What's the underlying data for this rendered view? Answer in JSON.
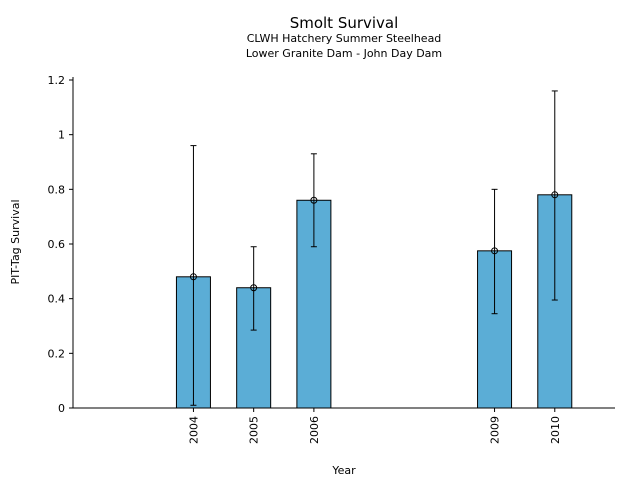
{
  "chart_data": {
    "type": "bar",
    "title": "Smolt Survival",
    "subtitle_lines": [
      "CLWH Hatchery Summer Steelhead",
      "Lower Granite Dam - John Day Dam"
    ],
    "xlabel": "Year",
    "ylabel": "PIT-Tag Survival",
    "ylim": [
      0,
      1.2
    ],
    "yticks": [
      0,
      0.2,
      0.4,
      0.6,
      0.8,
      1,
      1.2
    ],
    "ytick_labels": [
      "0",
      "0.2",
      "0.4",
      "0.6",
      "0.8",
      "1",
      "1.2"
    ],
    "xlim": [
      2002.0,
      2011.0
    ],
    "grid": false,
    "bar_color": "#5BADD6",
    "points": [
      {
        "year": 2004,
        "label": "2004",
        "value": 0.48,
        "lower": 0.01,
        "upper": 0.96
      },
      {
        "year": 2005,
        "label": "2005",
        "value": 0.44,
        "lower": 0.285,
        "upper": 0.59
      },
      {
        "year": 2006,
        "label": "2006",
        "value": 0.76,
        "lower": 0.59,
        "upper": 0.93
      },
      {
        "year": 2009,
        "label": "2009",
        "value": 0.575,
        "lower": 0.345,
        "upper": 0.8
      },
      {
        "year": 2010,
        "label": "2010",
        "value": 0.78,
        "lower": 0.395,
        "upper": 1.16
      }
    ]
  }
}
